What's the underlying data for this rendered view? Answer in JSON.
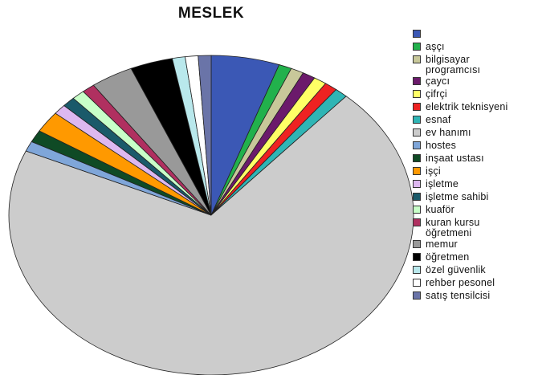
{
  "chart_data": {
    "type": "pie",
    "title": "MESLEK",
    "legend_position": "right",
    "slices": [
      {
        "label": "",
        "value": 5.3,
        "color": "#3b58b5"
      },
      {
        "label": "aşçı",
        "value": 1.0,
        "color": "#22b14c"
      },
      {
        "label": "bilgisayar programcısı",
        "value": 1.0,
        "color": "#c8c89a"
      },
      {
        "label": "çaycı",
        "value": 1.0,
        "color": "#6b1a6b"
      },
      {
        "label": "çifrçi",
        "value": 1.0,
        "color": "#ffff66"
      },
      {
        "label": "elektrik teknisyeni",
        "value": 1.0,
        "color": "#ee2222"
      },
      {
        "label": "esnaf",
        "value": 1.0,
        "color": "#2fb5b5"
      },
      {
        "label": "ev hanımı",
        "value": 68.0,
        "color": "#cccccc"
      },
      {
        "label": "hostes",
        "value": 1.0,
        "color": "#7fa6d9"
      },
      {
        "label": "inşaat ustası",
        "value": 1.2,
        "color": "#0f4a25"
      },
      {
        "label": "işçi",
        "value": 2.1,
        "color": "#ff9900"
      },
      {
        "label": "işletme",
        "value": 1.0,
        "color": "#ddb8f0"
      },
      {
        "label": "işletme sahibi",
        "value": 1.0,
        "color": "#1a5a6a"
      },
      {
        "label": "kuaför",
        "value": 1.0,
        "color": "#c8ffc8"
      },
      {
        "label": "kuran kursu öğretmeni",
        "value": 1.0,
        "color": "#b03060"
      },
      {
        "label": "memur",
        "value": 3.3,
        "color": "#999999"
      },
      {
        "label": "öğretmen",
        "value": 3.3,
        "color": "#000000"
      },
      {
        "label": "özel güvenlik",
        "value": 1.0,
        "color": "#b9e8ec"
      },
      {
        "label": "rehber pesonel",
        "value": 1.0,
        "color": "#ffffff"
      },
      {
        "label": "satış tensilcisi",
        "value": 1.0,
        "color": "#6a74a8"
      }
    ]
  },
  "legend": {
    "items": [
      {
        "label": "",
        "color": "#3b58b5"
      },
      {
        "label": "aşçı",
        "color": "#22b14c"
      },
      {
        "label": "bilgisayar\nprogramcısı",
        "color": "#c8c89a"
      },
      {
        "label": "çaycı",
        "color": "#6b1a6b"
      },
      {
        "label": "çifrçi",
        "color": "#ffff66"
      },
      {
        "label": "elektrik teknisyeni",
        "color": "#ee2222"
      },
      {
        "label": "esnaf",
        "color": "#2fb5b5"
      },
      {
        "label": "ev hanımı",
        "color": "#cccccc"
      },
      {
        "label": "hostes",
        "color": "#7fa6d9"
      },
      {
        "label": "inşaat ustası",
        "color": "#0f4a25"
      },
      {
        "label": "işçi",
        "color": "#ff9900"
      },
      {
        "label": "işletme",
        "color": "#ddb8f0"
      },
      {
        "label": "işletme sahibi",
        "color": "#1a5a6a"
      },
      {
        "label": "kuaför",
        "color": "#c8ffc8"
      },
      {
        "label": "kuran kursu\nöğretmeni",
        "color": "#b03060"
      },
      {
        "label": "memur",
        "color": "#999999"
      },
      {
        "label": "öğretmen",
        "color": "#000000"
      },
      {
        "label": "özel güvenlik",
        "color": "#b9e8ec"
      },
      {
        "label": "rehber pesonel",
        "color": "#ffffff"
      },
      {
        "label": "satış tensilcisi",
        "color": "#6a74a8"
      }
    ]
  }
}
